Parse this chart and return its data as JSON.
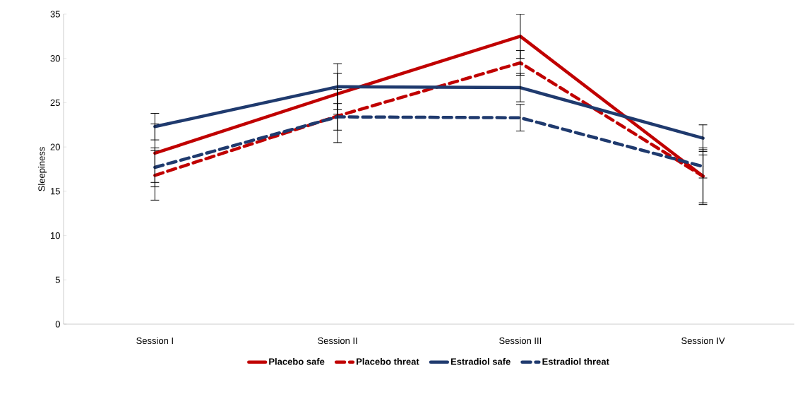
{
  "chart_data": {
    "type": "line",
    "ylabel": "Sleepiness",
    "categories": [
      "Session I",
      "Session II",
      "Session III",
      "Session IV"
    ],
    "ylim": [
      0,
      35
    ],
    "yticks": [
      0,
      5,
      10,
      15,
      20,
      25,
      30,
      35
    ],
    "legend": "bottom",
    "series": [
      {
        "name": "Placebo safe",
        "color": "#c00000",
        "line_style": "solid",
        "values": [
          19.3,
          26.0,
          32.5,
          16.7
        ],
        "errors": [
          3.3,
          2.3,
          2.5,
          3.0
        ]
      },
      {
        "name": "Placebo threat",
        "color": "#c00000",
        "line_style": "dashed",
        "values": [
          16.8,
          23.5,
          29.5,
          16.7
        ],
        "errors": [
          2.8,
          3.0,
          1.4,
          3.2
        ]
      },
      {
        "name": "Estradiol safe",
        "color": "#1f3a6e",
        "line_style": "solid",
        "values": [
          22.3,
          26.8,
          26.7,
          21.0
        ],
        "errors": [
          1.5,
          2.6,
          1.6,
          1.5
        ]
      },
      {
        "name": "Estradiol threat",
        "color": "#1f3a6e",
        "line_style": "dashed",
        "values": [
          17.7,
          23.4,
          23.3,
          17.8
        ],
        "errors": [
          2.2,
          1.5,
          1.5,
          1.3
        ]
      }
    ]
  }
}
